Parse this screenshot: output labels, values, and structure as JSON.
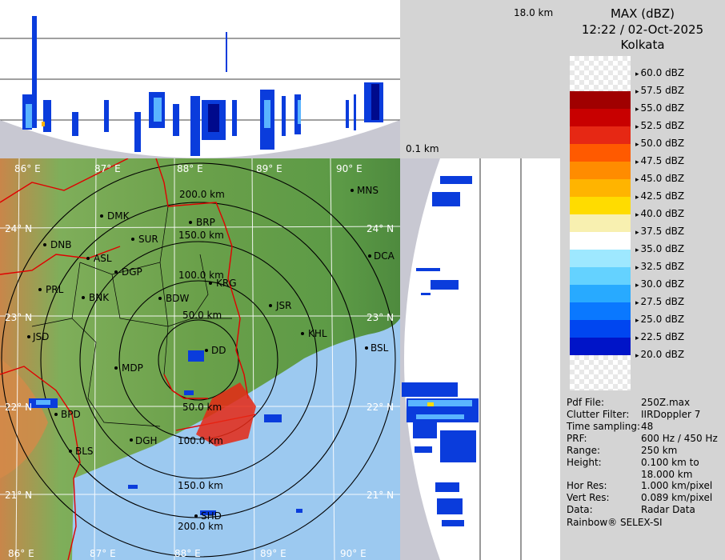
{
  "header": {
    "product": "MAX (dBZ)",
    "timestamp": "12:22 / 02-Oct-2025",
    "station": "Kolkata"
  },
  "height_labels": {
    "top": "18.0 km",
    "bottom": "0.1 km"
  },
  "color_scale": [
    {
      "label": "60.0 dBZ",
      "color": "#ffffff"
    },
    {
      "label": "57.5 dBZ",
      "color": "#a00000"
    },
    {
      "label": "55.0 dBZ",
      "color": "#c80000"
    },
    {
      "label": "52.5 dBZ",
      "color": "#e62814"
    },
    {
      "label": "50.0 dBZ",
      "color": "#ff5a00"
    },
    {
      "label": "47.5 dBZ",
      "color": "#ff8c00"
    },
    {
      "label": "45.0 dBZ",
      "color": "#ffb400"
    },
    {
      "label": "42.5 dBZ",
      "color": "#ffdc00"
    },
    {
      "label": "40.0 dBZ",
      "color": "#f8f0b0"
    },
    {
      "label": "37.5 dBZ",
      "color": "#ffffff"
    },
    {
      "label": "35.0 dBZ",
      "color": "#9ee8ff"
    },
    {
      "label": "32.5 dBZ",
      "color": "#64d2ff"
    },
    {
      "label": "30.0 dBZ",
      "color": "#28aaff"
    },
    {
      "label": "27.5 dBZ",
      "color": "#0a78ff"
    },
    {
      "label": "25.0 dBZ",
      "color": "#0046f0"
    },
    {
      "label": "22.5 dBZ",
      "color": "#0014c8"
    },
    {
      "label": "20.0 dBZ",
      "color": "#000a8c"
    }
  ],
  "info": [
    {
      "key": "Pdf File:",
      "value": "250Z.max"
    },
    {
      "key": "Clutter Filter:",
      "value": "IIRDoppler 7"
    },
    {
      "key": "Time sampling:",
      "value": "48"
    },
    {
      "key": "PRF:",
      "value": "600 Hz / 450 Hz"
    },
    {
      "key": "Range:",
      "value": "250 km"
    },
    {
      "key": "Height:",
      "value": "0.100 km to\n18.000 km"
    },
    {
      "key": "Hor Res:",
      "value": "1.000 km/pixel"
    },
    {
      "key": "Vert Res:",
      "value": "0.089 km/pixel"
    },
    {
      "key": "Data:",
      "value": "Radar Data"
    }
  ],
  "footer": "Rainbow® SELEX-SI",
  "map": {
    "lon_labels": [
      "86° E",
      "87° E",
      "88° E",
      "89° E",
      "90° E"
    ],
    "lat_labels": [
      "24° N",
      "23° N",
      "22° N",
      "21° N"
    ],
    "range_labels": [
      "50.0 km",
      "100.0 km",
      "150.0 km",
      "200.0 km"
    ],
    "cities": [
      {
        "name": "MNS"
      },
      {
        "name": "DMK"
      },
      {
        "name": "BRP"
      },
      {
        "name": "SUR"
      },
      {
        "name": "DNB"
      },
      {
        "name": "ASL"
      },
      {
        "name": "DGP"
      },
      {
        "name": "DCA"
      },
      {
        "name": "KRG"
      },
      {
        "name": "PRL"
      },
      {
        "name": "BNK"
      },
      {
        "name": "BDW"
      },
      {
        "name": "JSR"
      },
      {
        "name": "KHL"
      },
      {
        "name": "JSD"
      },
      {
        "name": "BSL"
      },
      {
        "name": "DD"
      },
      {
        "name": "MDP"
      },
      {
        "name": "BPD"
      },
      {
        "name": "DGH"
      },
      {
        "name": "BLS"
      },
      {
        "name": "SHD"
      }
    ]
  }
}
